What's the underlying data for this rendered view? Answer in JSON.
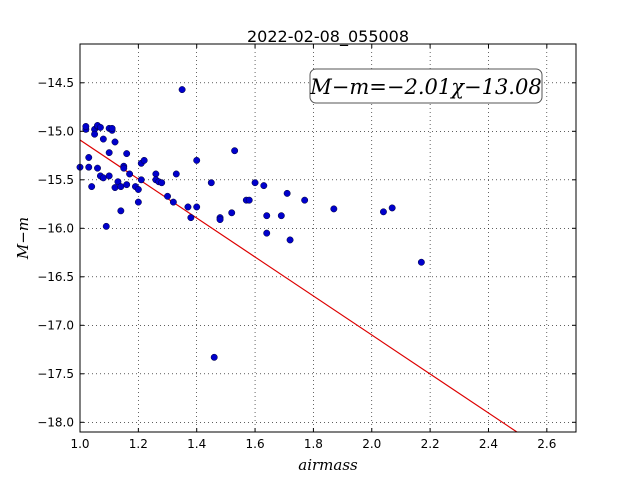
{
  "chart_data": {
    "type": "scatter",
    "title": "2022-02-08_055008",
    "xlabel": "airmass",
    "ylabel": "M−m",
    "annotation": "M−m=−2.01χ−13.08",
    "xlim": [
      1.0,
      2.7
    ],
    "ylim": [
      -18.1,
      -14.1
    ],
    "y_inverted": true,
    "x_ticks": [
      1.0,
      1.2,
      1.4,
      1.6,
      1.8,
      2.0,
      2.2,
      2.4,
      2.6
    ],
    "x_tick_labels": [
      "1.0",
      "1.2",
      "1.4",
      "1.6",
      "1.8",
      "2.0",
      "2.2",
      "2.4",
      "2.6"
    ],
    "y_ticks": [
      -14.5,
      -15.0,
      -15.5,
      -16.0,
      -16.5,
      -17.0,
      -17.5,
      -18.0
    ],
    "y_tick_labels": [
      "−14.5",
      "−15.0",
      "−15.5",
      "−16.0",
      "−16.5",
      "−17.0",
      "−17.5",
      "−18.0"
    ],
    "grid": true,
    "point_color": "#0000cc",
    "fit_color": "#dd0000",
    "fit": {
      "slope": -2.01,
      "intercept": -13.08
    },
    "points": [
      [
        1.0,
        -15.37
      ],
      [
        1.02,
        -14.98
      ],
      [
        1.02,
        -14.95
      ],
      [
        1.03,
        -15.27
      ],
      [
        1.03,
        -15.37
      ],
      [
        1.04,
        -15.57
      ],
      [
        1.05,
        -14.98
      ],
      [
        1.05,
        -15.03
      ],
      [
        1.06,
        -14.95
      ],
      [
        1.06,
        -14.94
      ],
      [
        1.06,
        -15.38
      ],
      [
        1.07,
        -15.46
      ],
      [
        1.07,
        -14.96
      ],
      [
        1.08,
        -15.08
      ],
      [
        1.08,
        -15.48
      ],
      [
        1.09,
        -15.98
      ],
      [
        1.1,
        -15.22
      ],
      [
        1.1,
        -14.97
      ],
      [
        1.1,
        -15.46
      ],
      [
        1.11,
        -14.99
      ],
      [
        1.11,
        -14.97
      ],
      [
        1.12,
        -15.58
      ],
      [
        1.12,
        -15.11
      ],
      [
        1.13,
        -15.52
      ],
      [
        1.14,
        -15.57
      ],
      [
        1.14,
        -15.82
      ],
      [
        1.15,
        -15.36
      ],
      [
        1.15,
        -15.38
      ],
      [
        1.16,
        -15.23
      ],
      [
        1.16,
        -15.55
      ],
      [
        1.17,
        -15.44
      ],
      [
        1.19,
        -15.57
      ],
      [
        1.2,
        -15.6
      ],
      [
        1.2,
        -15.73
      ],
      [
        1.21,
        -15.33
      ],
      [
        1.21,
        -15.5
      ],
      [
        1.22,
        -15.3
      ],
      [
        1.26,
        -15.44
      ],
      [
        1.26,
        -15.5
      ],
      [
        1.27,
        -15.52
      ],
      [
        1.28,
        -15.53
      ],
      [
        1.3,
        -15.67
      ],
      [
        1.32,
        -15.73
      ],
      [
        1.33,
        -15.44
      ],
      [
        1.35,
        -14.57
      ],
      [
        1.37,
        -15.78
      ],
      [
        1.38,
        -15.89
      ],
      [
        1.4,
        -15.78
      ],
      [
        1.4,
        -15.3
      ],
      [
        1.45,
        -15.53
      ],
      [
        1.46,
        -17.33
      ],
      [
        1.48,
        -15.89
      ],
      [
        1.48,
        -15.91
      ],
      [
        1.52,
        -15.84
      ],
      [
        1.53,
        -15.2
      ],
      [
        1.57,
        -15.71
      ],
      [
        1.58,
        -15.71
      ],
      [
        1.6,
        -15.53
      ],
      [
        1.63,
        -15.56
      ],
      [
        1.64,
        -15.87
      ],
      [
        1.64,
        -16.05
      ],
      [
        1.69,
        -15.87
      ],
      [
        1.71,
        -15.64
      ],
      [
        1.72,
        -16.12
      ],
      [
        1.77,
        -15.71
      ],
      [
        1.87,
        -15.8
      ],
      [
        2.04,
        -15.83
      ],
      [
        2.07,
        -15.79
      ],
      [
        2.17,
        -16.35
      ]
    ]
  }
}
